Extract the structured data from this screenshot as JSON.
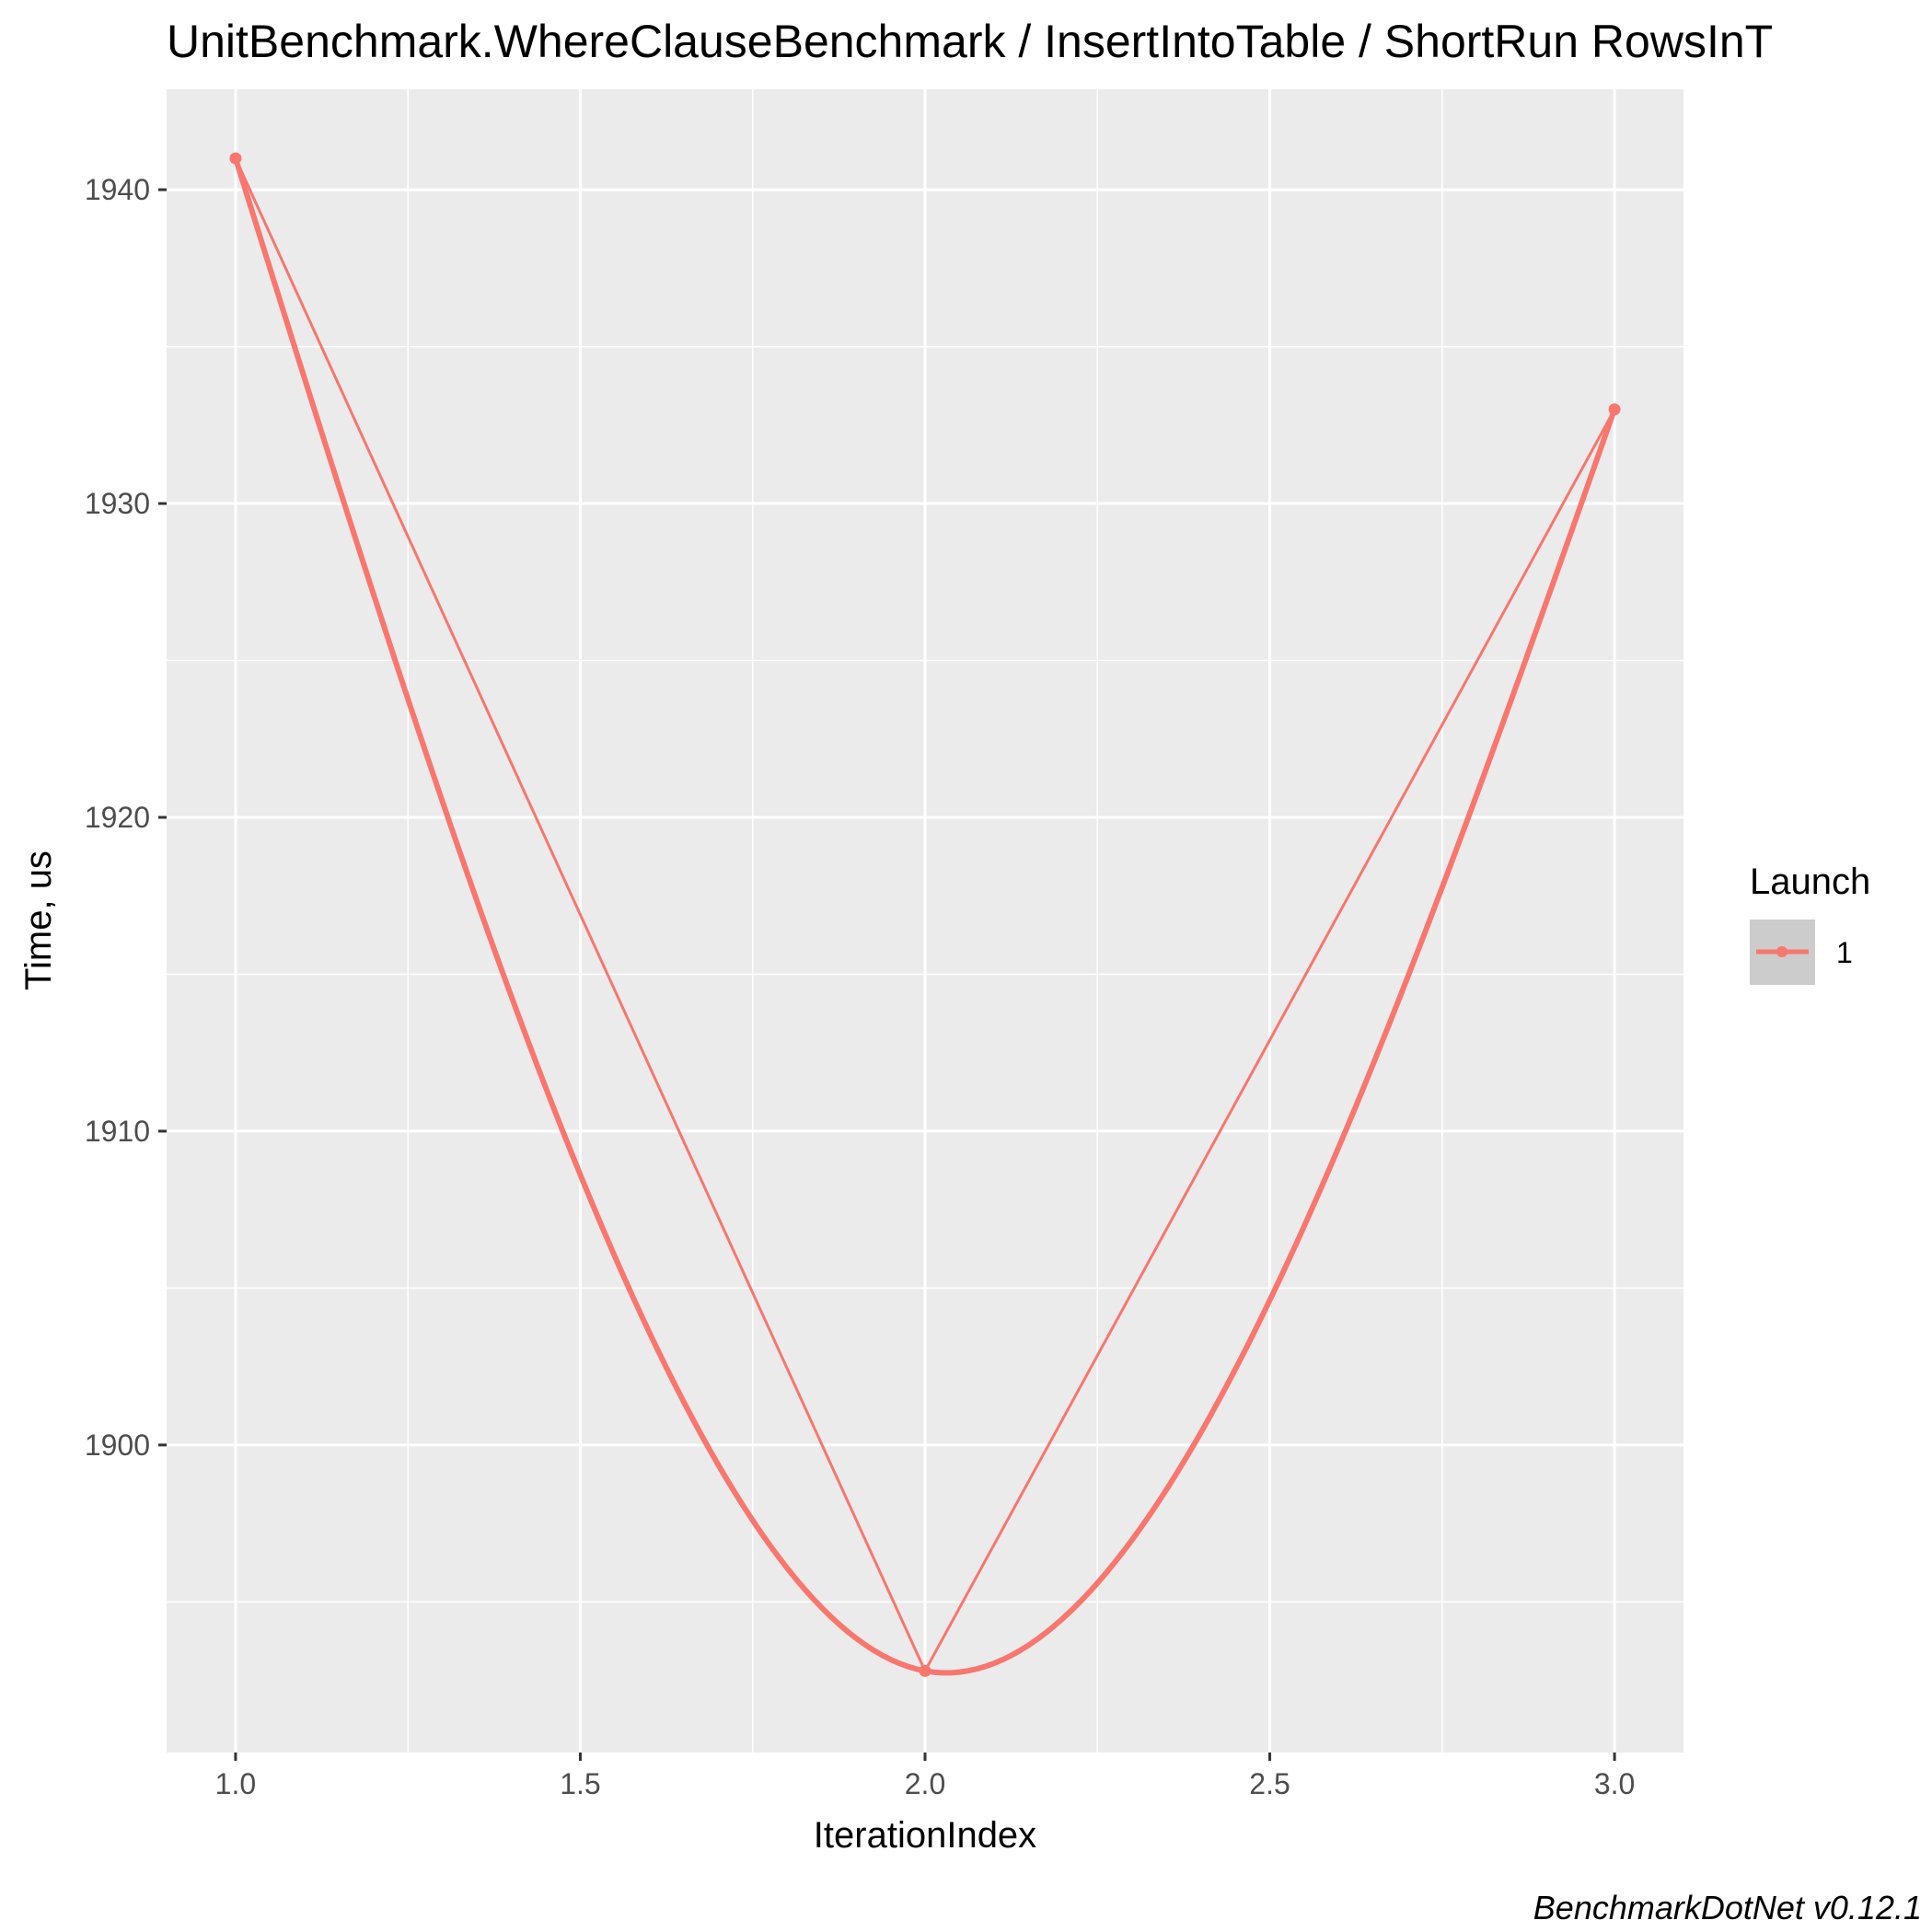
{
  "chart_data": {
    "type": "line",
    "title": "UnitBenchmark.WhereClauseBenchmark / InsertIntoTable / ShortRun RowsInT",
    "xlabel": "IterationIndex",
    "ylabel": "Time, us",
    "xlim": [
      0.9,
      3.1
    ],
    "ylim": [
      1890.2,
      1943.2
    ],
    "x_ticks": [
      1.0,
      1.5,
      2.0,
      2.5,
      3.0
    ],
    "x_tick_labels": [
      "1.0",
      "1.5",
      "2.0",
      "2.5",
      "3.0"
    ],
    "y_ticks": [
      1900,
      1910,
      1920,
      1930,
      1940
    ],
    "y_tick_labels": [
      "1900",
      "1910",
      "1920",
      "1930",
      "1940"
    ],
    "grid": true,
    "legend": {
      "title": "Launch",
      "position": "right"
    },
    "series": [
      {
        "name": "1",
        "color": "#F8766D",
        "x": [
          1,
          2,
          3
        ],
        "y": [
          1941.0,
          1892.8,
          1933.0
        ],
        "smooth": true
      }
    ],
    "caption": "BenchmarkDotNet v0.12.1"
  }
}
